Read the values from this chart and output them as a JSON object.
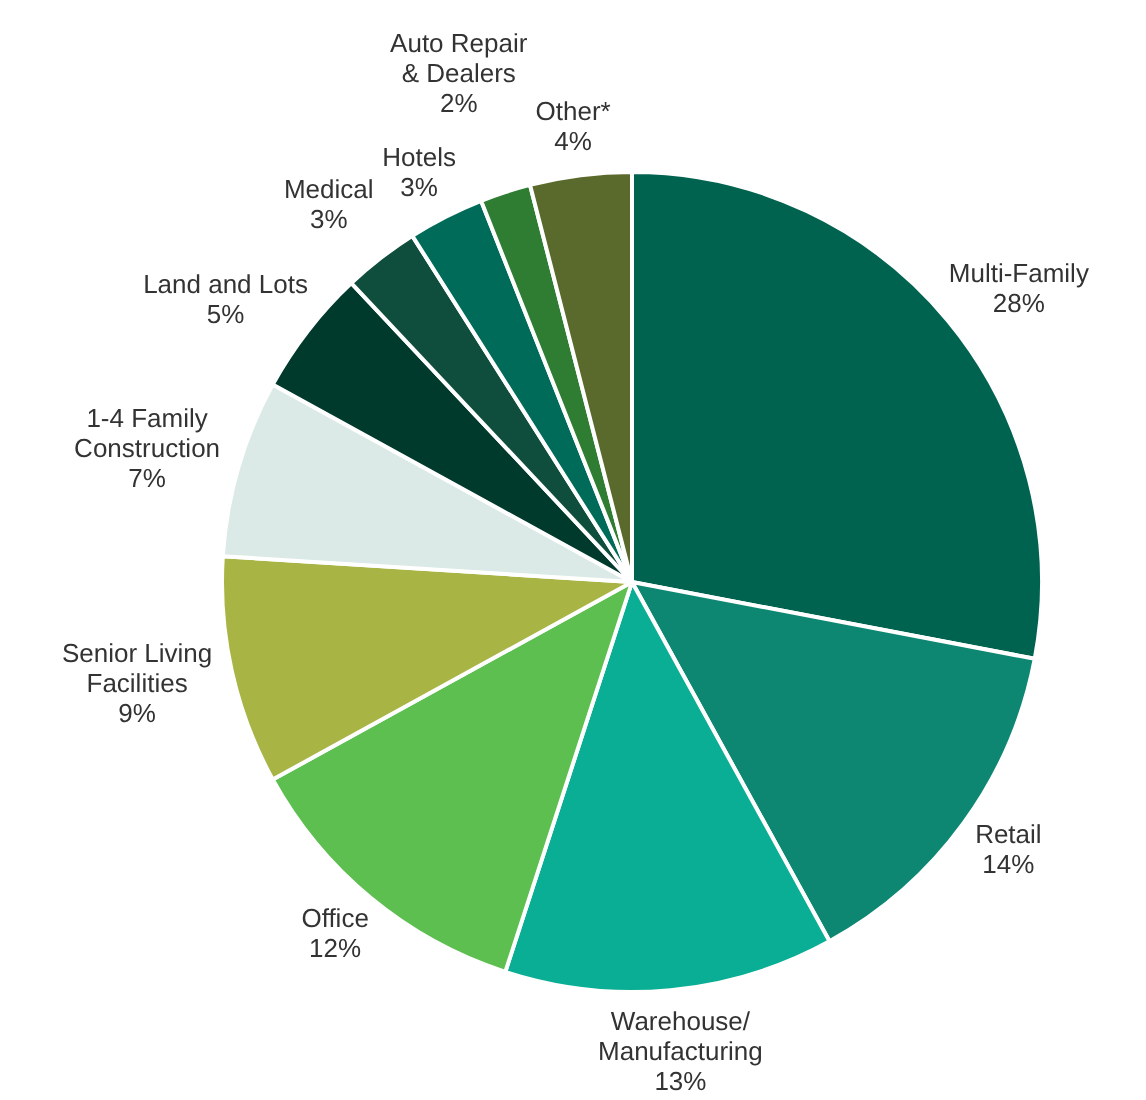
{
  "chart_data": {
    "type": "pie",
    "categories": [
      "Multi-Family",
      "Retail",
      "Warehouse/\nManufacturing",
      "Office",
      "Senior Living\nFacilities",
      "1-4 Family\nConstruction",
      "Land and Lots",
      "Medical",
      "Hotels",
      "Auto Repair\n& Dealers",
      "Other*"
    ],
    "values": [
      28,
      14,
      13,
      12,
      9,
      7,
      5,
      3,
      3,
      2,
      4
    ],
    "value_labels": [
      "28%",
      "14%",
      "13%",
      "12%",
      "9%",
      "7%",
      "5%",
      "3%",
      "3%",
      "2%",
      "4%"
    ],
    "colors": [
      "#00634f",
      "#0e8772",
      "#0aae94",
      "#5cbf50",
      "#a8b545",
      "#dbeae6",
      "#003a2c",
      "#0f4d3c",
      "#006b58",
      "#2e7d32",
      "#5a6a2c"
    ],
    "legend": false
  }
}
